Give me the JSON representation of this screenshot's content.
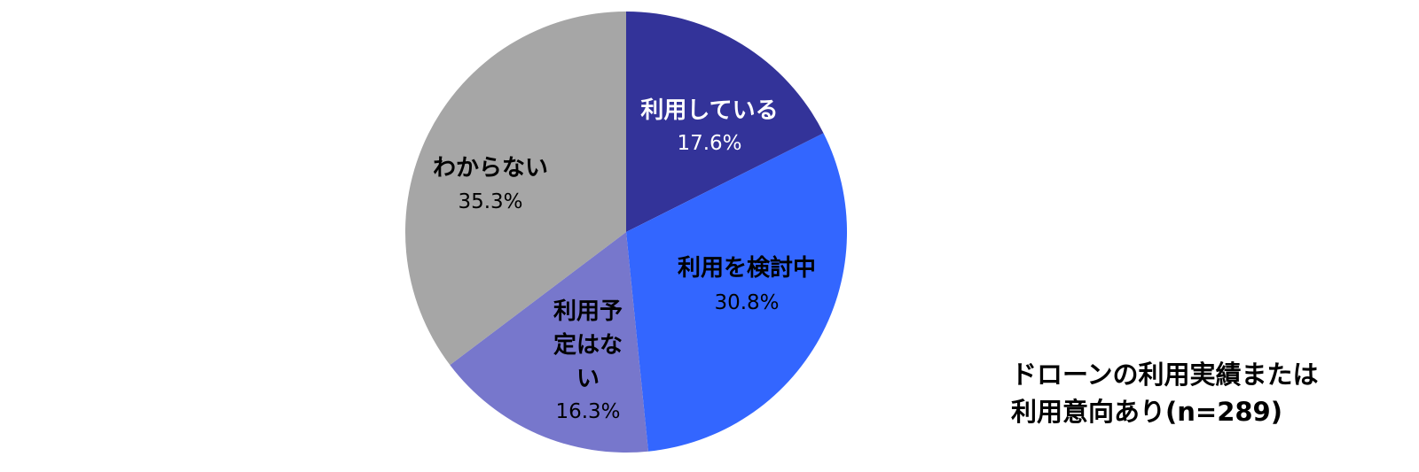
{
  "chart_data": {
    "type": "pie",
    "categories": [
      "利用している",
      "利用を検討中",
      "利用予定はない",
      "わからない"
    ],
    "values": [
      17.6,
      30.8,
      16.3,
      35.3
    ],
    "value_labels": [
      "17.6%",
      "30.8%",
      "16.3%",
      "35.3%"
    ],
    "colors": [
      "#333399",
      "#3366ff",
      "#7777cc",
      "#a6a6a6"
    ],
    "label_colors": [
      "#ffffff",
      "#000000",
      "#000000",
      "#000000"
    ],
    "annotation": "ドローンの利用実績または利用意向あり(n=289)"
  }
}
